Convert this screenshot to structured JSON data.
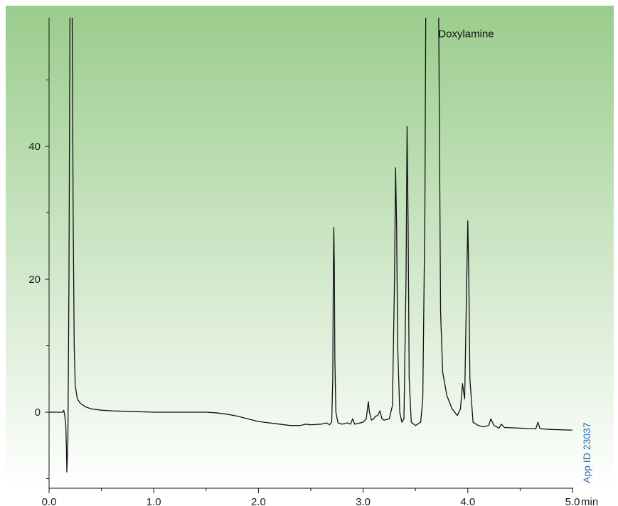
{
  "chart_data": {
    "type": "line",
    "title": "",
    "xlabel": "",
    "ylabel": "",
    "x_unit": "min",
    "xlim": [
      0,
      5.0
    ],
    "ylim": [
      -9,
      60
    ],
    "x_ticks": [
      {
        "value": 0,
        "label": "0.0"
      },
      {
        "value": 1,
        "label": "1.0"
      },
      {
        "value": 2,
        "label": "2.0"
      },
      {
        "value": 3,
        "label": "3.0"
      },
      {
        "value": 4,
        "label": "4.0"
      },
      {
        "value": 5,
        "label": "5.0"
      }
    ],
    "x_minor_ticks": [
      0.5,
      1.5,
      2.5,
      3.5,
      4.5
    ],
    "y_ticks": [
      {
        "value": 0,
        "label": "0"
      },
      {
        "value": 20,
        "label": "20"
      },
      {
        "value": 40,
        "label": "40"
      }
    ],
    "y_minor_ticks": [
      -10,
      10,
      30,
      50
    ],
    "grid": false,
    "background_gradient": [
      "#9acc8c",
      "#ffffff"
    ],
    "line_color": "#111111",
    "annotations": [
      {
        "text": "Doxylamine",
        "x": 3.65,
        "y": 59
      },
      {
        "text": "App ID 23037",
        "color": "#2a6db5",
        "orientation": "vertical",
        "position": "bottom-right"
      }
    ],
    "series": [
      {
        "points": [
          [
            0.0,
            0.0
          ],
          [
            0.13,
            0.0
          ],
          [
            0.14,
            0.3
          ],
          [
            0.15,
            -0.5
          ],
          [
            0.16,
            -2.0
          ],
          [
            0.165,
            -5.0
          ],
          [
            0.17,
            -9.0
          ],
          [
            0.18,
            -4.0
          ],
          [
            0.19,
            20.0
          ],
          [
            0.2,
            62.0
          ],
          [
            0.22,
            62.0
          ],
          [
            0.23,
            30.0
          ],
          [
            0.24,
            10.0
          ],
          [
            0.25,
            4.0
          ],
          [
            0.27,
            2.0
          ],
          [
            0.3,
            1.3
          ],
          [
            0.35,
            0.8
          ],
          [
            0.4,
            0.5
          ],
          [
            0.45,
            0.4
          ],
          [
            0.5,
            0.3
          ],
          [
            0.6,
            0.2
          ],
          [
            0.8,
            0.1
          ],
          [
            1.0,
            0.0
          ],
          [
            1.2,
            0.0
          ],
          [
            1.5,
            0.0
          ],
          [
            1.6,
            -0.1
          ],
          [
            1.7,
            -0.3
          ],
          [
            1.8,
            -0.6
          ],
          [
            1.9,
            -1.0
          ],
          [
            2.0,
            -1.4
          ],
          [
            2.1,
            -1.6
          ],
          [
            2.2,
            -1.8
          ],
          [
            2.3,
            -2.0
          ],
          [
            2.4,
            -2.0
          ],
          [
            2.45,
            -1.8
          ],
          [
            2.5,
            -1.9
          ],
          [
            2.6,
            -1.8
          ],
          [
            2.65,
            -1.6
          ],
          [
            2.68,
            -1.9
          ],
          [
            2.7,
            -1.5
          ],
          [
            2.71,
            5.0
          ],
          [
            2.715,
            20.0
          ],
          [
            2.72,
            27.8
          ],
          [
            2.725,
            22.0
          ],
          [
            2.73,
            8.0
          ],
          [
            2.74,
            0.0
          ],
          [
            2.76,
            -1.6
          ],
          [
            2.8,
            -1.8
          ],
          [
            2.85,
            -1.6
          ],
          [
            2.88,
            -1.8
          ],
          [
            2.9,
            -1.0
          ],
          [
            2.92,
            -1.8
          ],
          [
            2.95,
            -1.7
          ],
          [
            3.0,
            -1.5
          ],
          [
            3.03,
            -1.0
          ],
          [
            3.05,
            1.6
          ],
          [
            3.06,
            0.0
          ],
          [
            3.08,
            -1.2
          ],
          [
            3.1,
            -1.0
          ],
          [
            3.12,
            -0.6
          ],
          [
            3.14,
            -0.5
          ],
          [
            3.16,
            0.2
          ],
          [
            3.18,
            -1.0
          ],
          [
            3.2,
            -1.2
          ],
          [
            3.25,
            -1.0
          ],
          [
            3.28,
            1.0
          ],
          [
            3.3,
            20.0
          ],
          [
            3.31,
            36.8
          ],
          [
            3.32,
            28.0
          ],
          [
            3.33,
            10.0
          ],
          [
            3.35,
            0.0
          ],
          [
            3.37,
            -1.5
          ],
          [
            3.39,
            -1.0
          ],
          [
            3.41,
            20.0
          ],
          [
            3.42,
            43.0
          ],
          [
            3.43,
            28.0
          ],
          [
            3.44,
            5.0
          ],
          [
            3.46,
            -1.5
          ],
          [
            3.5,
            -2.0
          ],
          [
            3.55,
            -1.5
          ],
          [
            3.57,
            2.0
          ],
          [
            3.59,
            30.0
          ],
          [
            3.6,
            65.0
          ],
          [
            3.72,
            65.0
          ],
          [
            3.73,
            40.0
          ],
          [
            3.74,
            15.0
          ],
          [
            3.76,
            6.0
          ],
          [
            3.8,
            2.5
          ],
          [
            3.85,
            0.5
          ],
          [
            3.9,
            -0.5
          ],
          [
            3.93,
            0.5
          ],
          [
            3.95,
            4.3
          ],
          [
            3.96,
            3.0
          ],
          [
            3.97,
            2.0
          ],
          [
            3.99,
            20.0
          ],
          [
            4.0,
            28.8
          ],
          [
            4.01,
            20.0
          ],
          [
            4.02,
            5.0
          ],
          [
            4.05,
            -1.5
          ],
          [
            4.1,
            -2.0
          ],
          [
            4.15,
            -2.2
          ],
          [
            4.2,
            -2.0
          ],
          [
            4.22,
            -1.0
          ],
          [
            4.25,
            -2.0
          ],
          [
            4.3,
            -2.4
          ],
          [
            4.32,
            -1.8
          ],
          [
            4.35,
            -2.3
          ],
          [
            4.5,
            -2.4
          ],
          [
            4.6,
            -2.5
          ],
          [
            4.65,
            -2.5
          ],
          [
            4.67,
            -1.5
          ],
          [
            4.69,
            -2.5
          ],
          [
            4.8,
            -2.6
          ],
          [
            5.0,
            -2.7
          ]
        ]
      }
    ]
  }
}
